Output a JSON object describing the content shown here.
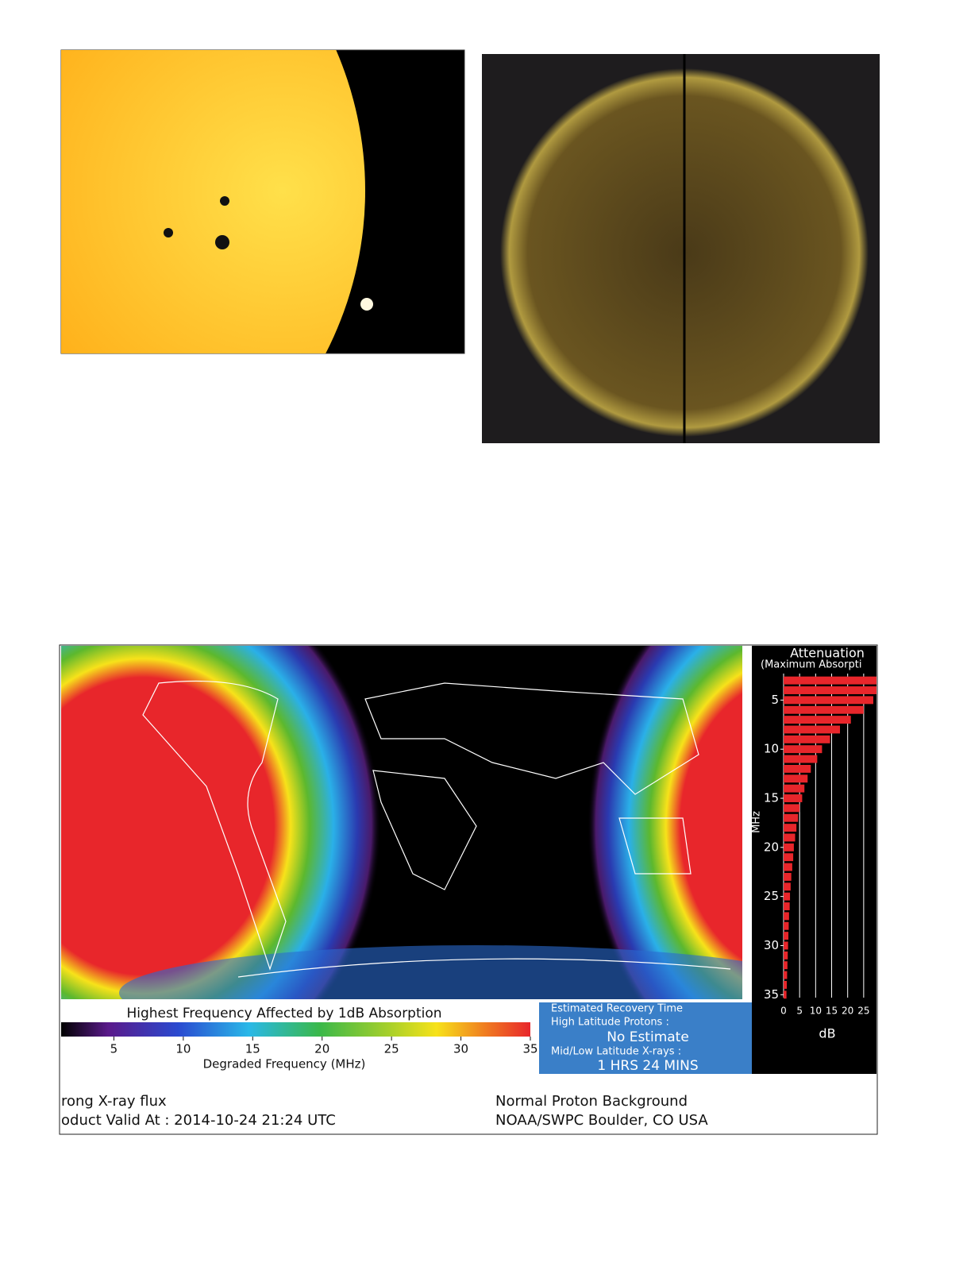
{
  "drap": {
    "attenuation": {
      "title": "Attenuation",
      "subtitle": "(Maximum Absorpti",
      "ylabel": "MHz",
      "xlabel": "dB",
      "mhz": [
        3,
        4,
        5,
        6,
        7,
        8,
        9,
        10,
        11,
        12,
        13,
        14,
        15,
        16,
        17,
        18,
        19,
        20,
        21,
        22,
        23,
        24,
        25,
        26,
        27,
        28,
        29,
        30,
        31,
        32,
        33,
        34,
        35
      ],
      "values": [
        30,
        30,
        28,
        25,
        21,
        17.6,
        14.5,
        12,
        10.5,
        8.5,
        7.5,
        6.5,
        5.8,
        5,
        4.5,
        4,
        3.6,
        3.2,
        3,
        2.7,
        2.4,
        2.2,
        2,
        1.9,
        1.7,
        1.6,
        1.5,
        1.4,
        1.3,
        1.2,
        1.1,
        1,
        0.9
      ],
      "xlim": [
        0,
        29
      ],
      "ylim": [
        2.3,
        35.3
      ],
      "xticks": [
        0,
        5,
        10,
        15,
        20,
        25
      ],
      "yticks": [
        5,
        10,
        15,
        20,
        25,
        30,
        35
      ],
      "color": "#e8262b"
    },
    "colorbar": {
      "title": "Highest Frequency Affected by 1dB Absorption",
      "label": "Degraded Frequency (MHz)",
      "xlim": [
        1.2,
        35
      ],
      "xticks": [
        5,
        10,
        15,
        20,
        25,
        30,
        35
      ]
    },
    "recovery": {
      "title": "Estimated Recovery Time",
      "line1": "High Latitude Protons :",
      "value1": "No Estimate",
      "line2": "Mid/Low Latitude X-rays :",
      "value2": "1 HRS 24 MINS"
    },
    "footer": {
      "left1": "rong X-ray flux",
      "left2": "oduct Valid At : 2014-10-24 21:24 UTC",
      "right1": "Normal Proton Background",
      "right2": "NOAA/SWPC Boulder, CO USA"
    }
  }
}
